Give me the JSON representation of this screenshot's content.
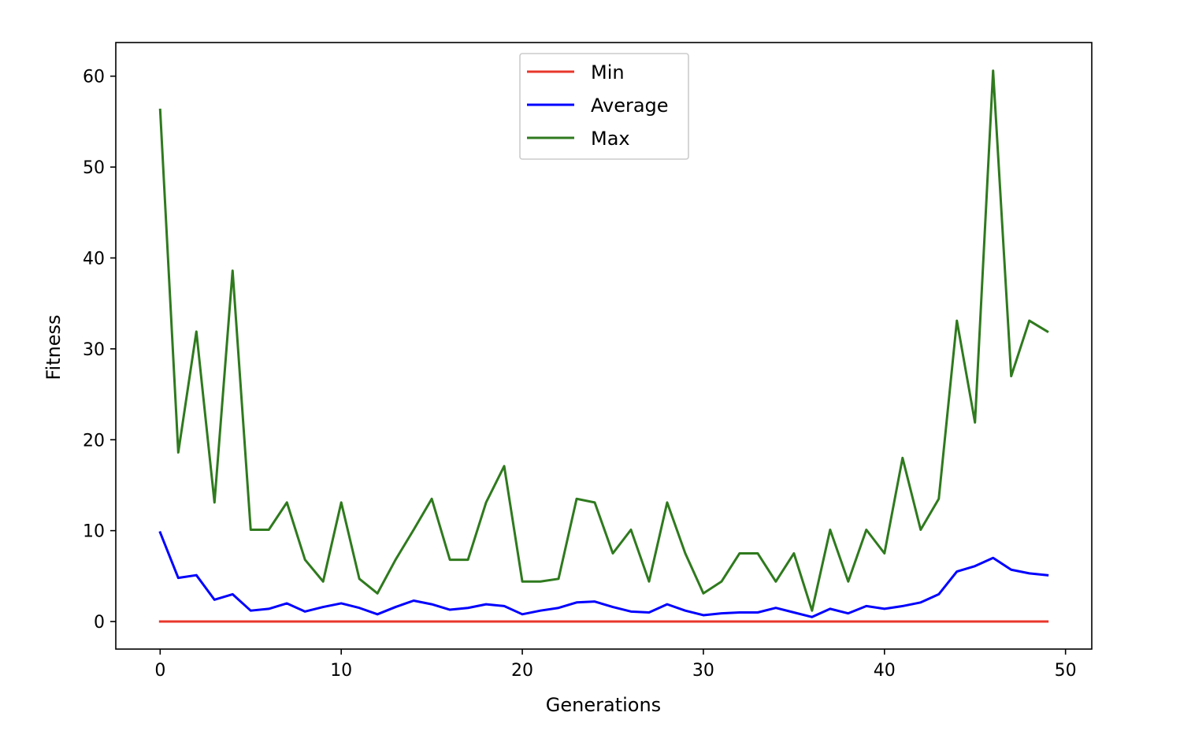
{
  "chart_data": {
    "type": "line",
    "xlabel": "Generations",
    "ylabel": "Fitness",
    "xlim": [
      -2.45,
      51.45
    ],
    "ylim": [
      -3.03,
      63.7
    ],
    "xticks": [
      0,
      10,
      20,
      30,
      40,
      50
    ],
    "yticks": [
      0,
      10,
      20,
      30,
      40,
      50,
      60
    ],
    "grid": false,
    "legend_position": "top-center",
    "x": [
      0,
      1,
      2,
      3,
      4,
      5,
      6,
      7,
      8,
      9,
      10,
      11,
      12,
      13,
      14,
      15,
      16,
      17,
      18,
      19,
      20,
      21,
      22,
      23,
      24,
      25,
      26,
      27,
      28,
      29,
      30,
      31,
      32,
      33,
      34,
      35,
      36,
      37,
      38,
      39,
      40,
      41,
      42,
      43,
      44,
      45,
      46,
      47,
      48,
      49
    ],
    "series": [
      {
        "name": "Min",
        "color": "#e8372b",
        "values": [
          0,
          0,
          0,
          0,
          0,
          0,
          0,
          0,
          0,
          0,
          0,
          0,
          0,
          0,
          0,
          0,
          0,
          0,
          0,
          0,
          0,
          0,
          0,
          0,
          0,
          0,
          0,
          0,
          0,
          0,
          0,
          0,
          0,
          0,
          0,
          0,
          0,
          0,
          0,
          0,
          0,
          0,
          0,
          0,
          0,
          0,
          0,
          0,
          0,
          0
        ]
      },
      {
        "name": "Average",
        "color": "#0000ff",
        "values": [
          9.8,
          4.8,
          5.1,
          2.4,
          3.0,
          1.2,
          1.4,
          2.0,
          1.1,
          1.6,
          2.0,
          1.5,
          0.8,
          1.6,
          2.3,
          1.9,
          1.3,
          1.5,
          1.9,
          1.7,
          0.8,
          1.2,
          1.5,
          2.1,
          2.2,
          1.6,
          1.1,
          1.0,
          1.9,
          1.2,
          0.7,
          0.9,
          1.0,
          1.0,
          1.5,
          1.0,
          0.5,
          1.4,
          0.9,
          1.7,
          1.4,
          1.7,
          2.1,
          3.0,
          5.5,
          6.1,
          7.0,
          5.7,
          5.3,
          5.1
        ]
      },
      {
        "name": "Max",
        "color": "#2f7a1e",
        "values": [
          56.3,
          18.6,
          31.9,
          13.1,
          38.6,
          10.1,
          10.1,
          13.1,
          6.8,
          4.4,
          13.1,
          4.7,
          3.1,
          6.8,
          10.1,
          13.5,
          6.8,
          6.8,
          13.1,
          17.1,
          4.4,
          4.4,
          4.7,
          13.5,
          13.1,
          7.5,
          10.1,
          4.4,
          13.1,
          7.5,
          3.1,
          4.4,
          7.5,
          7.5,
          4.4,
          7.5,
          1.2,
          10.1,
          4.4,
          10.1,
          7.5,
          18.0,
          10.1,
          13.5,
          33.1,
          21.9,
          60.6,
          27.0,
          33.1,
          31.9
        ]
      }
    ]
  }
}
